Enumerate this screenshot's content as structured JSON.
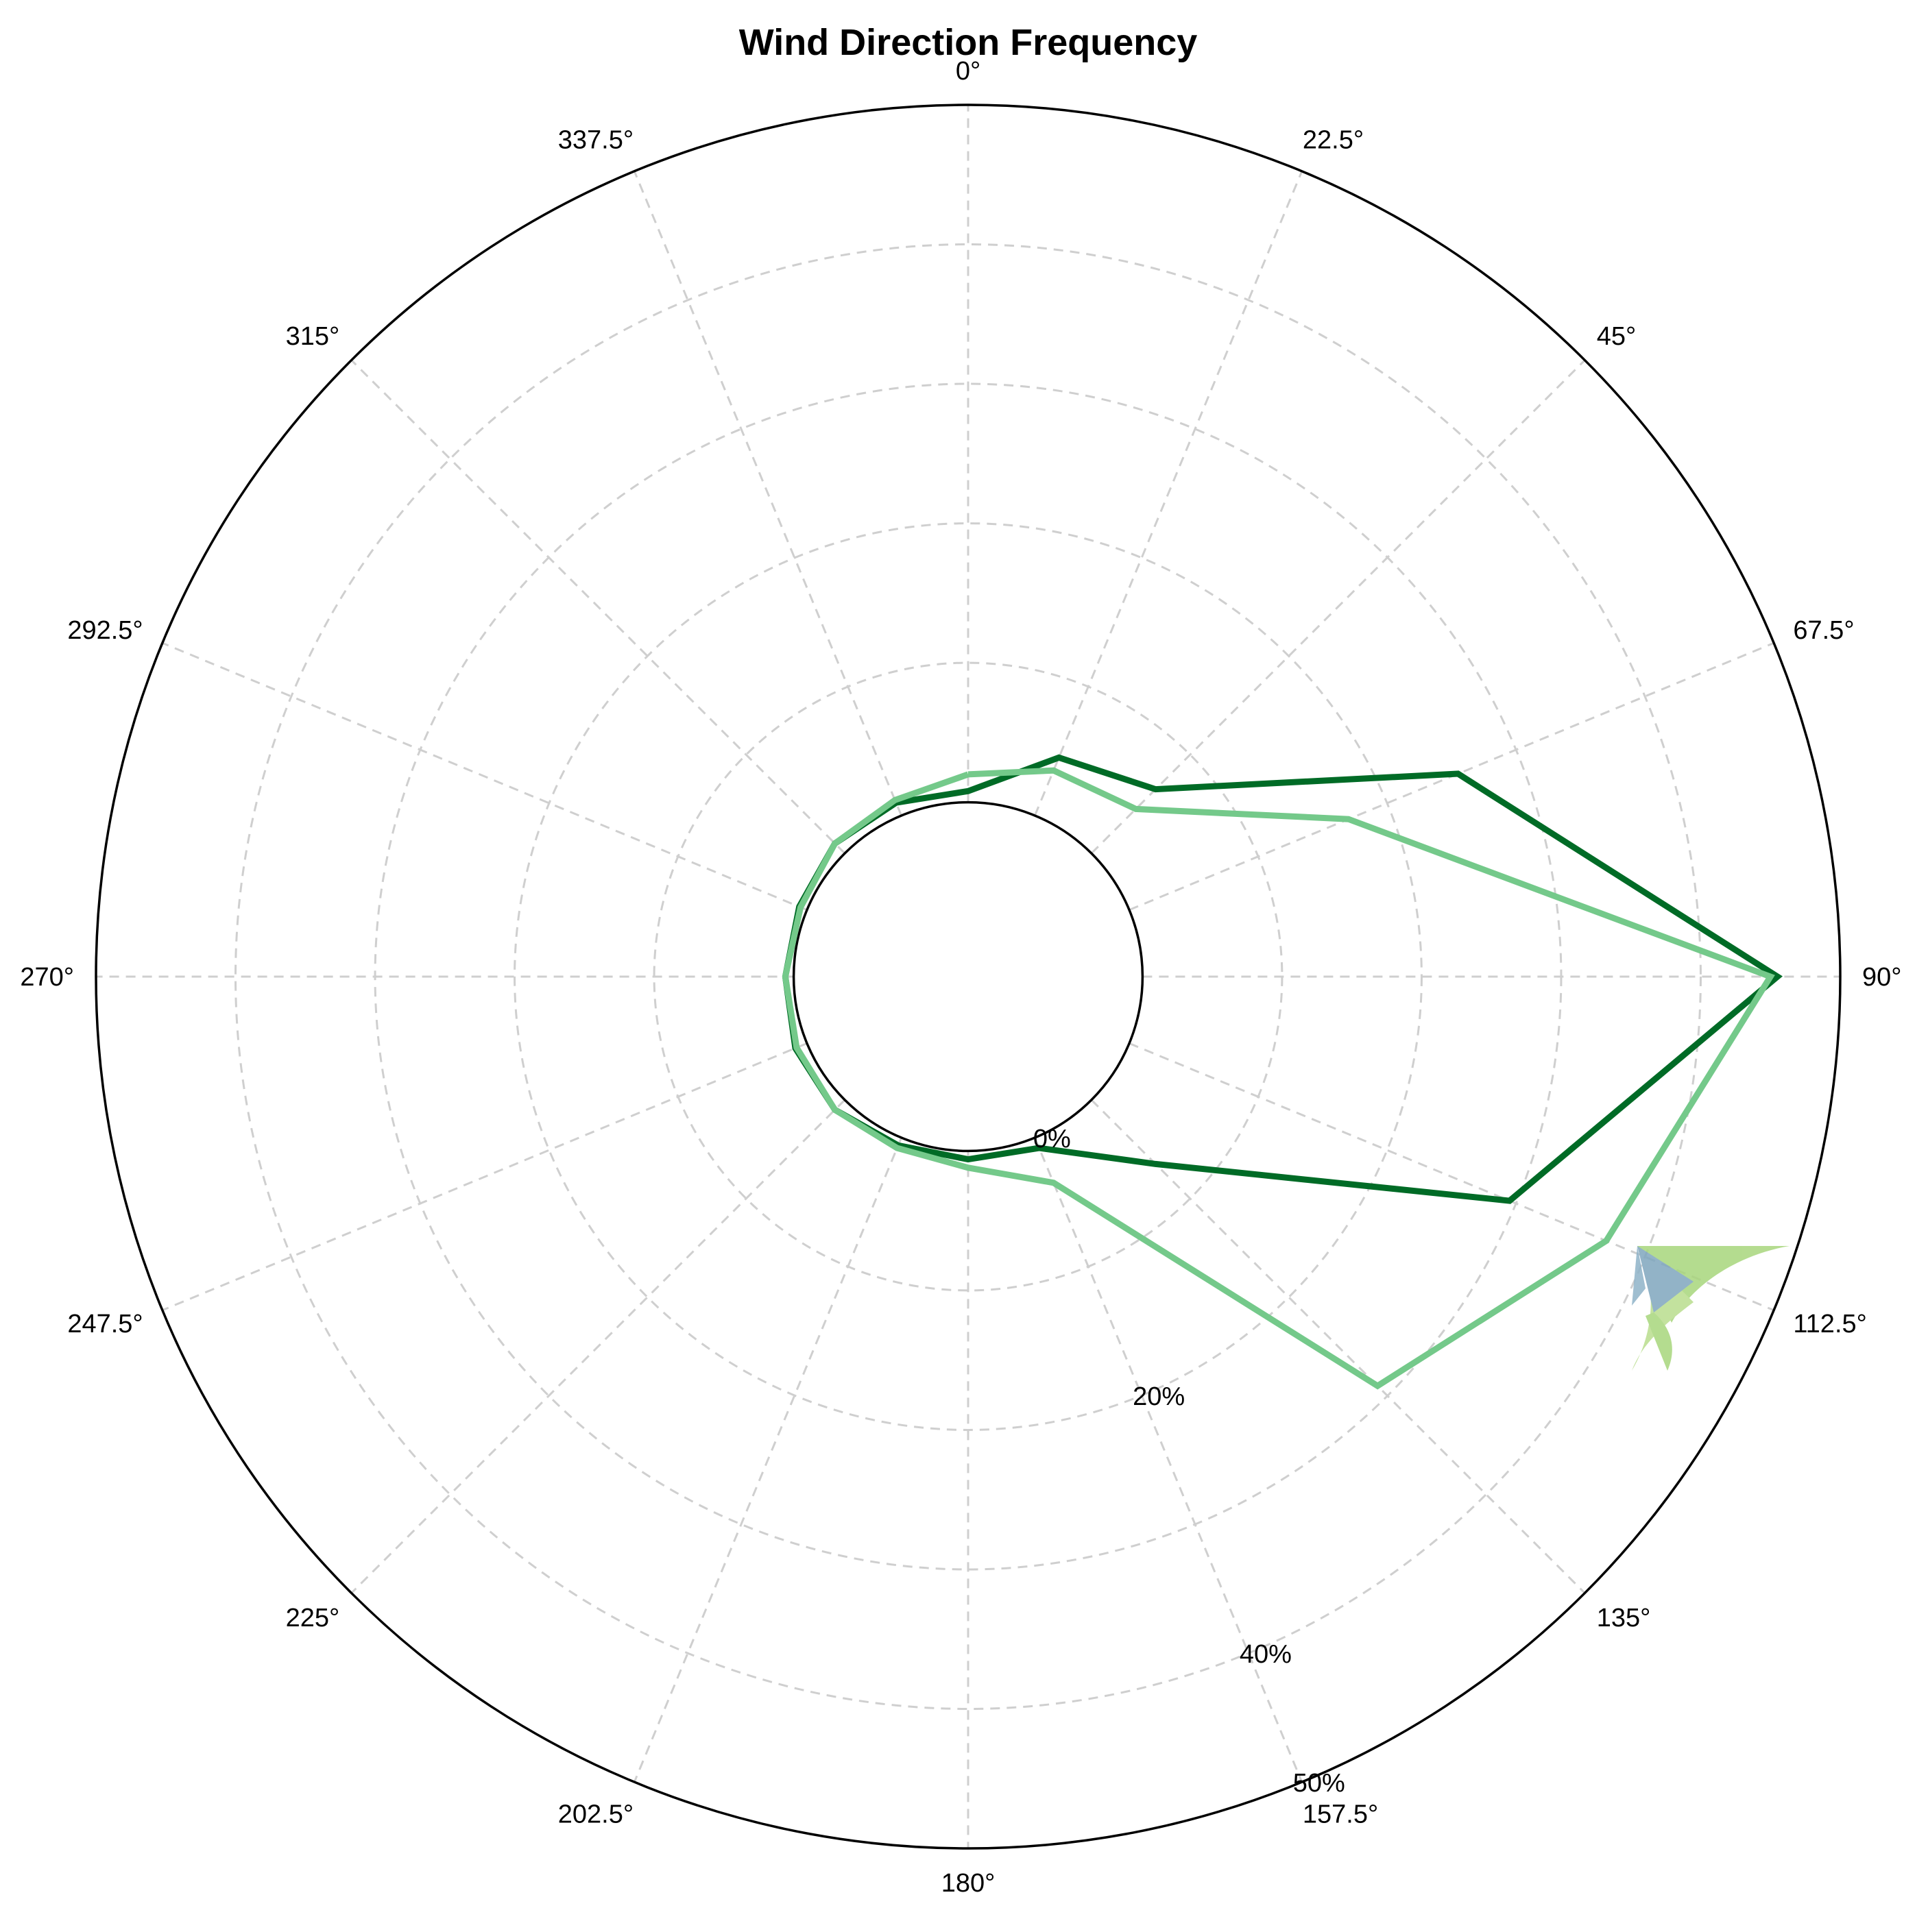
{
  "chart_data": {
    "type": "line",
    "subtype": "polar-radar",
    "title": "Wind Direction Frequency",
    "angle_unit": "degrees",
    "direction": "clockwise",
    "zero_at": "top",
    "angle_ticks": [
      0,
      22.5,
      45,
      67.5,
      90,
      112.5,
      135,
      157.5,
      180,
      202.5,
      225,
      247.5,
      270,
      292.5,
      315,
      337.5
    ],
    "angle_tick_labels": [
      "0°",
      "22.5°",
      "45°",
      "67.5°",
      "90°",
      "112.5°",
      "135°",
      "157.5°",
      "180°",
      "202.5°",
      "225°",
      "247.5°",
      "270°",
      "292.5°",
      "315°",
      "337.5°"
    ],
    "radial_axis": {
      "unit": "%",
      "range": [
        0,
        50
      ],
      "inner_hole_fraction": 0.2,
      "grid_values": [
        10,
        20,
        30,
        40
      ],
      "tick_labels": [
        {
          "value": 0,
          "text": "0%"
        },
        {
          "value": 20,
          "text": "20%"
        },
        {
          "value": 40,
          "text": "40%"
        },
        {
          "value": 50,
          "text": "50%"
        }
      ],
      "label_angle": 157.5
    },
    "grid": true,
    "legend": "none",
    "series": [
      {
        "color": "#006b26",
        "closed": false,
        "points": [
          {
            "angle": 0,
            "value": 0.8
          },
          {
            "angle": 22.5,
            "value": 4.5
          },
          {
            "angle": 45,
            "value": 6.5
          },
          {
            "angle": 67.5,
            "value": 25.5
          },
          {
            "angle": 90,
            "value": 45.5
          },
          {
            "angle": 112.5,
            "value": 29.5
          },
          {
            "angle": 135,
            "value": 6.5
          },
          {
            "angle": 157.5,
            "value": 0.8
          },
          {
            "angle": 180,
            "value": 0.6
          },
          {
            "angle": 202.5,
            "value": 0.6
          },
          {
            "angle": 225,
            "value": 1.0
          },
          {
            "angle": 247.5,
            "value": 0.9
          },
          {
            "angle": 270,
            "value": 0.6
          },
          {
            "angle": 292.5,
            "value": 0.6
          },
          {
            "angle": 315,
            "value": 1.0
          },
          {
            "angle": 337.5,
            "value": 1.0
          },
          {
            "angle": 360,
            "value": 0.8
          },
          {
            "angle": 22.5,
            "value": 4.5
          },
          {
            "angle": 45,
            "value": 6.5
          },
          {
            "angle": 67.5,
            "value": 25.5
          },
          {
            "angle": 90,
            "value": 45.5
          },
          {
            "angle": 112.5,
            "value": 29.5
          },
          {
            "angle": 135,
            "value": 6.5
          }
        ]
      },
      {
        "color": "#74c98a",
        "closed": true,
        "points": [
          {
            "angle": 0,
            "value": 2.0
          },
          {
            "angle": 22.5,
            "value": 3.5
          },
          {
            "angle": 45,
            "value": 4.5
          },
          {
            "angle": 67.5,
            "value": 17.0
          },
          {
            "angle": 90,
            "value": 45.0
          },
          {
            "angle": 112.5,
            "value": 37.0
          },
          {
            "angle": 135,
            "value": 29.0
          },
          {
            "angle": 157.5,
            "value": 3.5
          },
          {
            "angle": 180,
            "value": 1.2
          },
          {
            "angle": 202.5,
            "value": 0.8
          },
          {
            "angle": 225,
            "value": 1.0
          },
          {
            "angle": 247.5,
            "value": 0.8
          },
          {
            "angle": 270,
            "value": 0.6
          },
          {
            "angle": 292.5,
            "value": 0.5
          },
          {
            "angle": 315,
            "value": 1.0
          },
          {
            "angle": 337.5,
            "value": 1.2
          }
        ]
      }
    ]
  },
  "logo": {
    "name": "kite-logo-icon",
    "colors": [
      "#a8d67c",
      "#7fa6be"
    ]
  },
  "colors": {
    "grid": "#cfcfcf",
    "axis": "#000000",
    "background": "#ffffff"
  }
}
